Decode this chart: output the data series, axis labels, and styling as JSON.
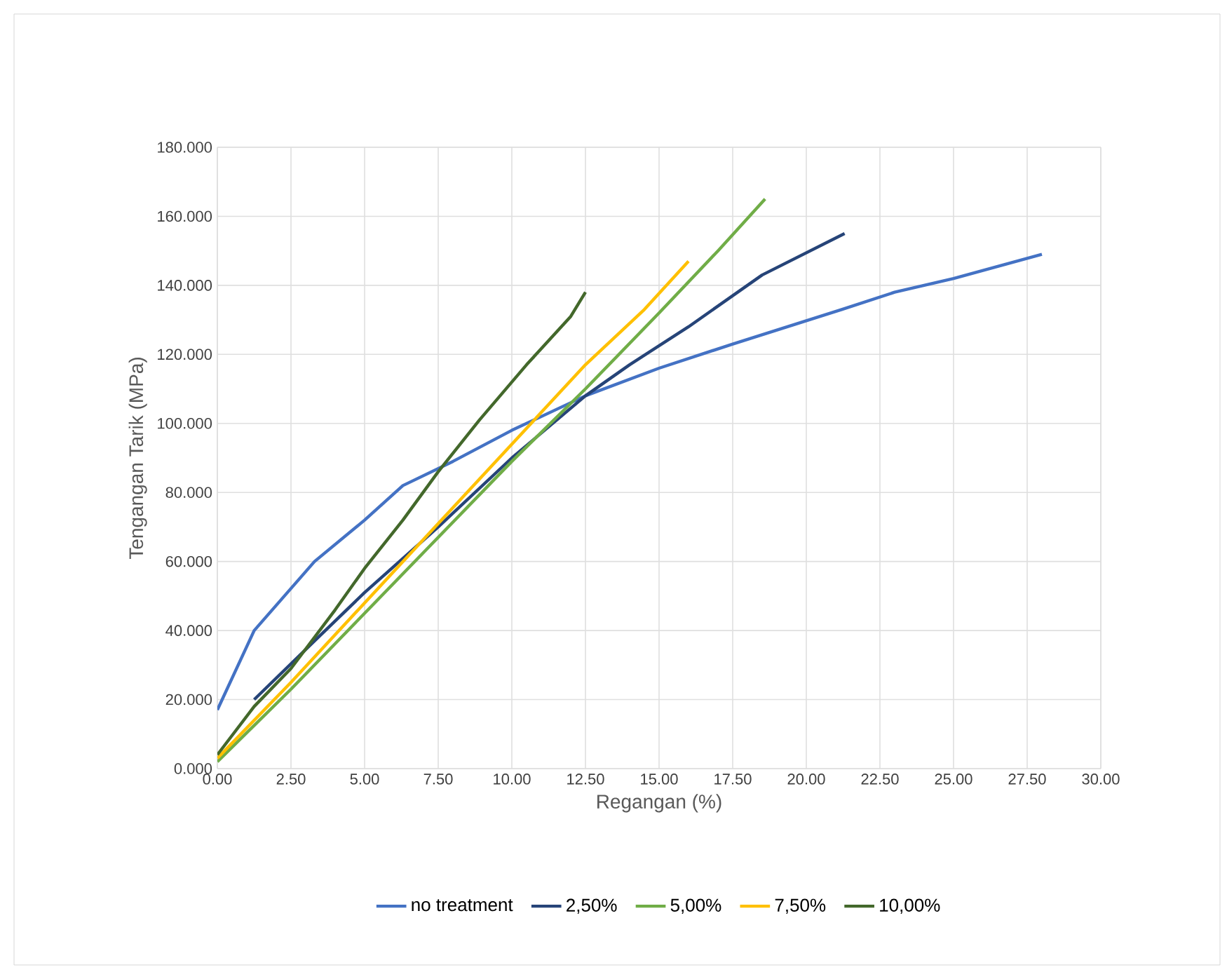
{
  "chart_data": {
    "type": "line",
    "xlabel": "Regangan (%)",
    "ylabel": "Tengangan Tarik (MPa)",
    "xlim": [
      0,
      30
    ],
    "ylim": [
      0,
      180
    ],
    "xticks": [
      {
        "value": 0,
        "label": "0.00"
      },
      {
        "value": 2.5,
        "label": "2.50"
      },
      {
        "value": 5,
        "label": "5.00"
      },
      {
        "value": 7.5,
        "label": "7.50"
      },
      {
        "value": 10,
        "label": "10.00"
      },
      {
        "value": 12.5,
        "label": "12.50"
      },
      {
        "value": 15,
        "label": "15.00"
      },
      {
        "value": 17.5,
        "label": "17.50"
      },
      {
        "value": 20,
        "label": "20.00"
      },
      {
        "value": 22.5,
        "label": "22.50"
      },
      {
        "value": 25,
        "label": "25.00"
      },
      {
        "value": 27.5,
        "label": "27.50"
      },
      {
        "value": 30,
        "label": "30.00"
      }
    ],
    "yticks": [
      {
        "value": 0,
        "label": "0.000"
      },
      {
        "value": 20,
        "label": "20.000"
      },
      {
        "value": 40,
        "label": "40.000"
      },
      {
        "value": 60,
        "label": "60.000"
      },
      {
        "value": 80,
        "label": "80.000"
      },
      {
        "value": 100,
        "label": "100.000"
      },
      {
        "value": 120,
        "label": "120.000"
      },
      {
        "value": 140,
        "label": "140.000"
      },
      {
        "value": 160,
        "label": "160.000"
      },
      {
        "value": 180,
        "label": "180.000"
      }
    ],
    "grid": true,
    "legend": "bottom",
    "marker": "none",
    "line_style": "solid",
    "series": [
      {
        "name": "no treatment",
        "color": "#4472c4",
        "x": [
          0,
          1.25,
          3.3,
          5,
          6.3,
          8,
          10,
          12.5,
          15,
          17.5,
          21.2,
          23,
          25,
          28
        ],
        "values": [
          17,
          40,
          60,
          72,
          82,
          89,
          98,
          108,
          116,
          123,
          133,
          138,
          142,
          149
        ]
      },
      {
        "name": "2,50%",
        "color": "#264478",
        "x": [
          1.25,
          3.3,
          5,
          7.5,
          10,
          12.5,
          14,
          16,
          18.5,
          21.3
        ],
        "values": [
          20,
          37,
          51,
          70,
          90,
          108,
          117,
          128,
          143,
          155
        ]
      },
      {
        "name": "5,00%",
        "color": "#70ad47",
        "x": [
          0,
          2.5,
          5,
          7.5,
          10,
          12.5,
          15,
          17,
          18.6
        ],
        "values": [
          2,
          23,
          45,
          67,
          89,
          110,
          132,
          150,
          165
        ]
      },
      {
        "name": "7,50%",
        "color": "#ffc000",
        "x": [
          0,
          2.5,
          5,
          7.5,
          10,
          12.5,
          14.5,
          16
        ],
        "values": [
          3,
          25,
          48,
          71,
          94,
          117,
          133,
          147
        ]
      },
      {
        "name": "10,00%",
        "color": "#43682b",
        "x": [
          0,
          1.25,
          2.5,
          4,
          5,
          6.3,
          7.5,
          8.9,
          10.5,
          12,
          12.5
        ],
        "values": [
          4,
          18,
          29,
          46,
          58,
          72,
          86,
          101,
          117,
          131,
          138
        ]
      }
    ]
  }
}
